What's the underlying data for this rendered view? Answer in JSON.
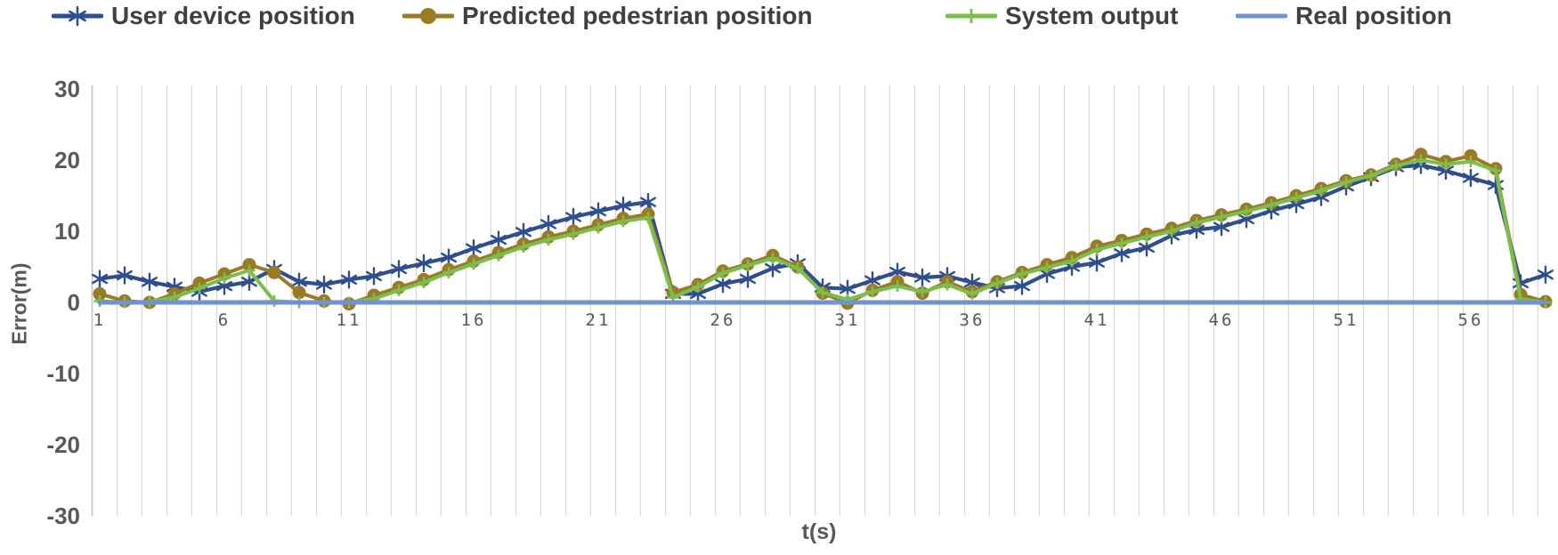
{
  "legend": {
    "items": [
      {
        "label": "User device position",
        "marker": "asterisk",
        "color": "#2e4e8f"
      },
      {
        "label": "Predicted pedestrian position",
        "marker": "circle",
        "color": "#9a7b24"
      },
      {
        "label": "System output",
        "marker": "plus",
        "color": "#7cbe4d"
      },
      {
        "label": "Real position",
        "marker": "none",
        "color": "#7191d1"
      }
    ]
  },
  "axes": {
    "y_title": "Error(m)",
    "x_title": "t(s)",
    "y_ticks": [
      30,
      20,
      10,
      0,
      -10,
      -20,
      -30
    ],
    "x_ticks": [
      1,
      6,
      11,
      16,
      21,
      26,
      31,
      36,
      41,
      46,
      51,
      56
    ]
  },
  "colors": {
    "user_device": "#2e4e8f",
    "predicted_pedestrian": "#9a7b24",
    "system_output": "#7cbe4d",
    "real_position": "#7191d1",
    "gridline": "#d9d9d9",
    "axis_line": "#c6c6c6",
    "tick_text": "#595959",
    "legend_text": "#404040"
  },
  "chart_data": {
    "type": "line",
    "title": "",
    "xlabel": "t(s)",
    "ylabel": "Error(m)",
    "ylim": [
      -30,
      30
    ],
    "xlim": [
      1,
      59
    ],
    "grid": "vertical",
    "legend_position": "top",
    "y_ticks": [
      30,
      20,
      10,
      0,
      -10,
      -20,
      -30
    ],
    "x_ticks": [
      1,
      6,
      11,
      16,
      21,
      26,
      31,
      36,
      41,
      46,
      51,
      56
    ],
    "x": [
      1,
      2,
      3,
      4,
      5,
      6,
      7,
      8,
      9,
      10,
      11,
      12,
      13,
      14,
      15,
      16,
      17,
      18,
      19,
      20,
      21,
      22,
      23,
      24,
      25,
      26,
      27,
      28,
      29,
      30,
      31,
      32,
      33,
      34,
      35,
      36,
      37,
      38,
      39,
      40,
      41,
      42,
      43,
      44,
      45,
      46,
      47,
      48,
      49,
      50,
      51,
      52,
      53,
      54,
      55,
      56,
      57,
      58,
      59
    ],
    "series": [
      {
        "name": "User device position",
        "marker": "asterisk",
        "color": "#2e4e8f",
        "values": [
          3.3,
          3.8,
          2.9,
          2.2,
          1.5,
          2.3,
          2.9,
          4.7,
          2.9,
          2.5,
          3.2,
          3.7,
          4.7,
          5.5,
          6.3,
          7.6,
          8.8,
          9.9,
          11.0,
          12.0,
          12.8,
          13.6,
          14.1,
          1.2,
          1.2,
          2.6,
          3.3,
          4.8,
          5.5,
          2.1,
          1.9,
          3.1,
          4.3,
          3.5,
          3.7,
          2.8,
          2.0,
          2.3,
          4.0,
          5.0,
          5.6,
          6.9,
          7.7,
          9.4,
          10.2,
          10.6,
          11.7,
          12.9,
          13.8,
          14.8,
          16.3,
          17.6,
          19.0,
          19.3,
          18.5,
          17.5,
          16.5,
          2.7,
          3.9
        ]
      },
      {
        "name": "Predicted pedestrian position",
        "marker": "circle",
        "color": "#9a7b24",
        "values": [
          1.2,
          0.2,
          0.0,
          1.2,
          2.7,
          4.0,
          5.3,
          4.2,
          1.4,
          0.2,
          -0.2,
          1.0,
          2.1,
          3.2,
          4.6,
          5.8,
          7.0,
          8.2,
          9.2,
          10.0,
          10.9,
          11.8,
          12.4,
          1.4,
          2.5,
          4.4,
          5.4,
          6.6,
          5.0,
          1.3,
          -0.1,
          1.7,
          2.9,
          1.3,
          2.9,
          1.5,
          2.9,
          4.2,
          5.3,
          6.3,
          7.9,
          8.7,
          9.6,
          10.4,
          11.5,
          12.3,
          13.1,
          14.0,
          15.0,
          16.0,
          17.1,
          17.9,
          19.4,
          20.8,
          19.8,
          20.6,
          18.8,
          1.1,
          0.1
        ]
      },
      {
        "name": "System output",
        "marker": "plus",
        "color": "#7cbe4d",
        "values": [
          0.2,
          0.0,
          0.1,
          0.7,
          2.0,
          3.4,
          4.5,
          0.2,
          0.0,
          0.0,
          0.0,
          0.5,
          1.7,
          2.8,
          4.2,
          5.4,
          6.6,
          7.8,
          8.8,
          9.6,
          10.5,
          11.4,
          11.9,
          0.7,
          2.2,
          4.1,
          5.2,
          6.2,
          4.8,
          1.4,
          0.4,
          1.5,
          2.3,
          1.5,
          2.5,
          1.2,
          2.7,
          4.0,
          4.9,
          5.8,
          7.4,
          8.3,
          9.2,
          10.0,
          11.2,
          12.0,
          12.8,
          13.7,
          14.7,
          15.7,
          16.9,
          17.8,
          19.2,
          20.0,
          19.4,
          19.8,
          18.5,
          0.5,
          0.0
        ]
      },
      {
        "name": "Real position",
        "marker": "none",
        "color": "#7191d1",
        "values": [
          0,
          0,
          0,
          0,
          0,
          0,
          0,
          0,
          0,
          0,
          0,
          0,
          0,
          0,
          0,
          0,
          0,
          0,
          0,
          0,
          0,
          0,
          0,
          0,
          0,
          0,
          0,
          0,
          0,
          0,
          0,
          0,
          0,
          0,
          0,
          0,
          0,
          0,
          0,
          0,
          0,
          0,
          0,
          0,
          0,
          0,
          0,
          0,
          0,
          0,
          0,
          0,
          0,
          0,
          0,
          0,
          0,
          0,
          0
        ]
      }
    ]
  }
}
